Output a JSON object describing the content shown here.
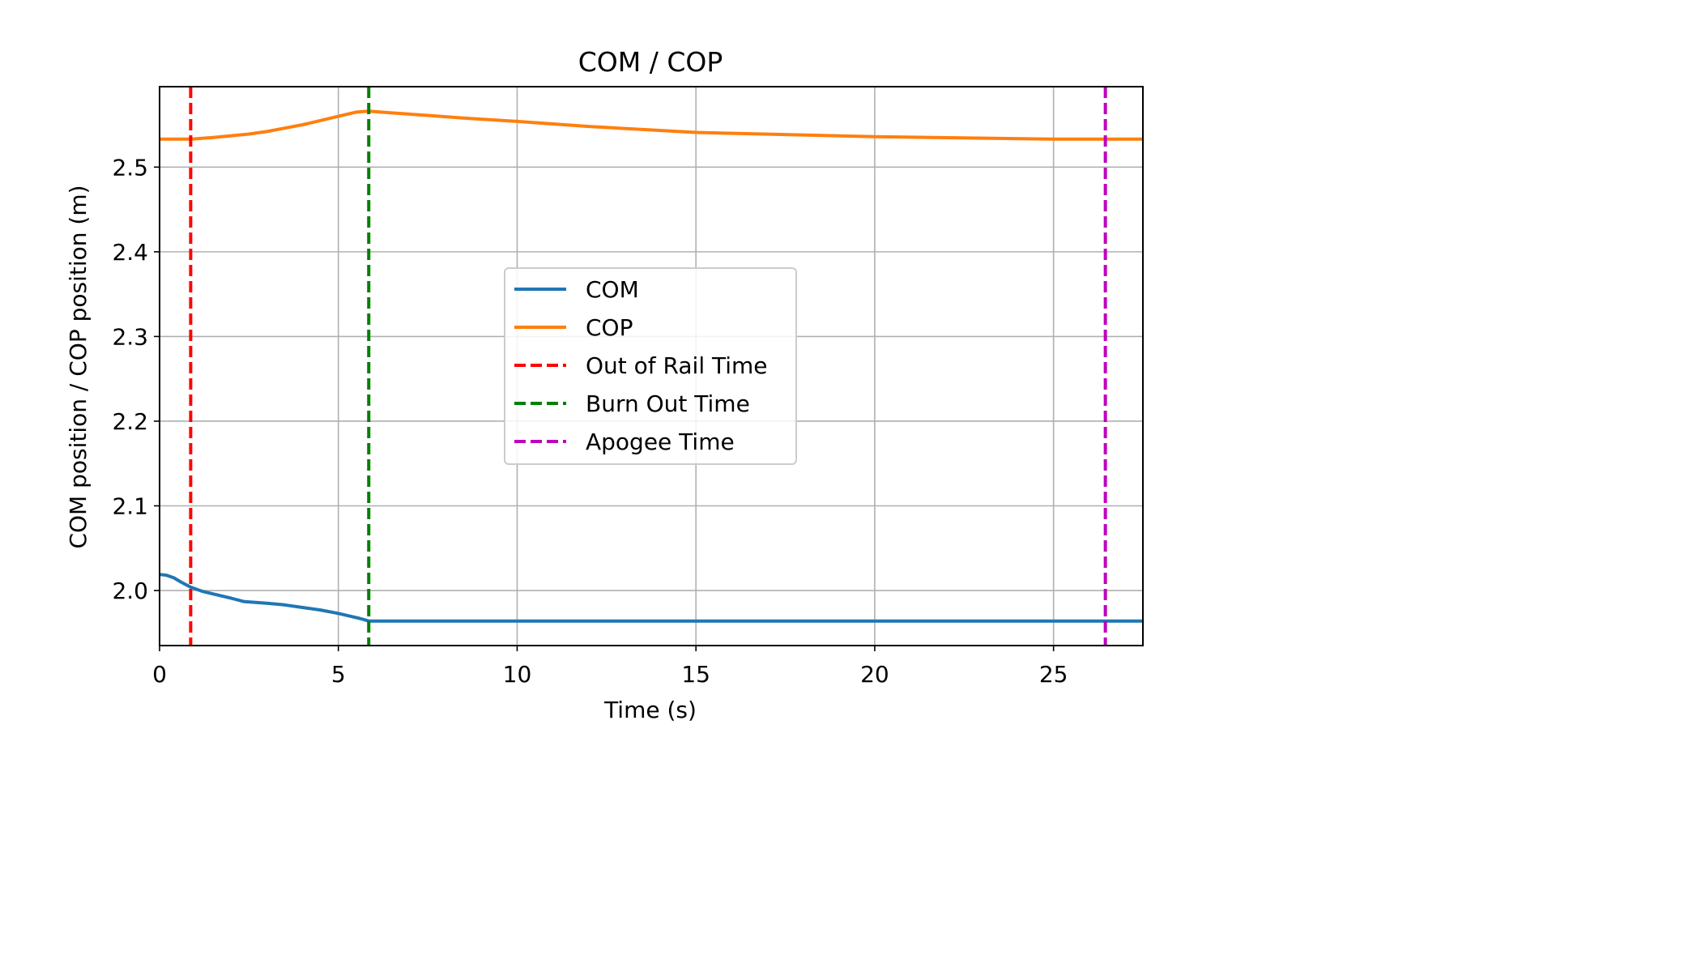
{
  "chart_data": {
    "type": "line",
    "title": "COM / COP",
    "xlabel": "Time (s)",
    "ylabel": "COM position / COP position (m)",
    "xlim": [
      0,
      27.5
    ],
    "ylim": [
      1.935,
      2.595
    ],
    "xticks": [
      0,
      5,
      10,
      15,
      20,
      25
    ],
    "yticks": [
      2.0,
      2.1,
      2.2,
      2.3,
      2.4,
      2.5
    ],
    "grid": true,
    "legend_position": "center",
    "series": [
      {
        "name": "COM",
        "color": "#1f77b4",
        "x": [
          0,
          0.2,
          0.4,
          0.6,
          0.87,
          1.2,
          1.6,
          2.0,
          2.35,
          3.0,
          3.5,
          4.0,
          4.5,
          5.0,
          5.3,
          5.6,
          5.85,
          6.0,
          10,
          15,
          20,
          25,
          27.5
        ],
        "y": [
          2.019,
          2.018,
          2.015,
          2.01,
          2.004,
          1.999,
          1.995,
          1.991,
          1.987,
          1.985,
          1.983,
          1.98,
          1.977,
          1.973,
          1.97,
          1.967,
          1.964,
          1.964,
          1.964,
          1.964,
          1.964,
          1.964,
          1.964
        ]
      },
      {
        "name": "COP",
        "color": "#ff7f0e",
        "x": [
          0,
          0.5,
          0.87,
          1.5,
          2.0,
          2.5,
          3.0,
          3.5,
          4.0,
          4.5,
          5.0,
          5.5,
          5.85,
          6.5,
          7.5,
          8.5,
          10,
          12,
          15,
          20,
          25,
          27.5
        ],
        "y": [
          2.533,
          2.533,
          2.533,
          2.535,
          2.537,
          2.539,
          2.542,
          2.546,
          2.55,
          2.555,
          2.56,
          2.565,
          2.566,
          2.564,
          2.561,
          2.558,
          2.554,
          2.548,
          2.541,
          2.536,
          2.533,
          2.533
        ]
      }
    ],
    "vlines": [
      {
        "name": "Out of Rail Time",
        "x": 0.87,
        "color": "#ff0000"
      },
      {
        "name": "Burn Out Time",
        "x": 5.85,
        "color": "#008000"
      },
      {
        "name": "Apogee Time",
        "x": 26.45,
        "color": "#bf00bf"
      }
    ]
  }
}
